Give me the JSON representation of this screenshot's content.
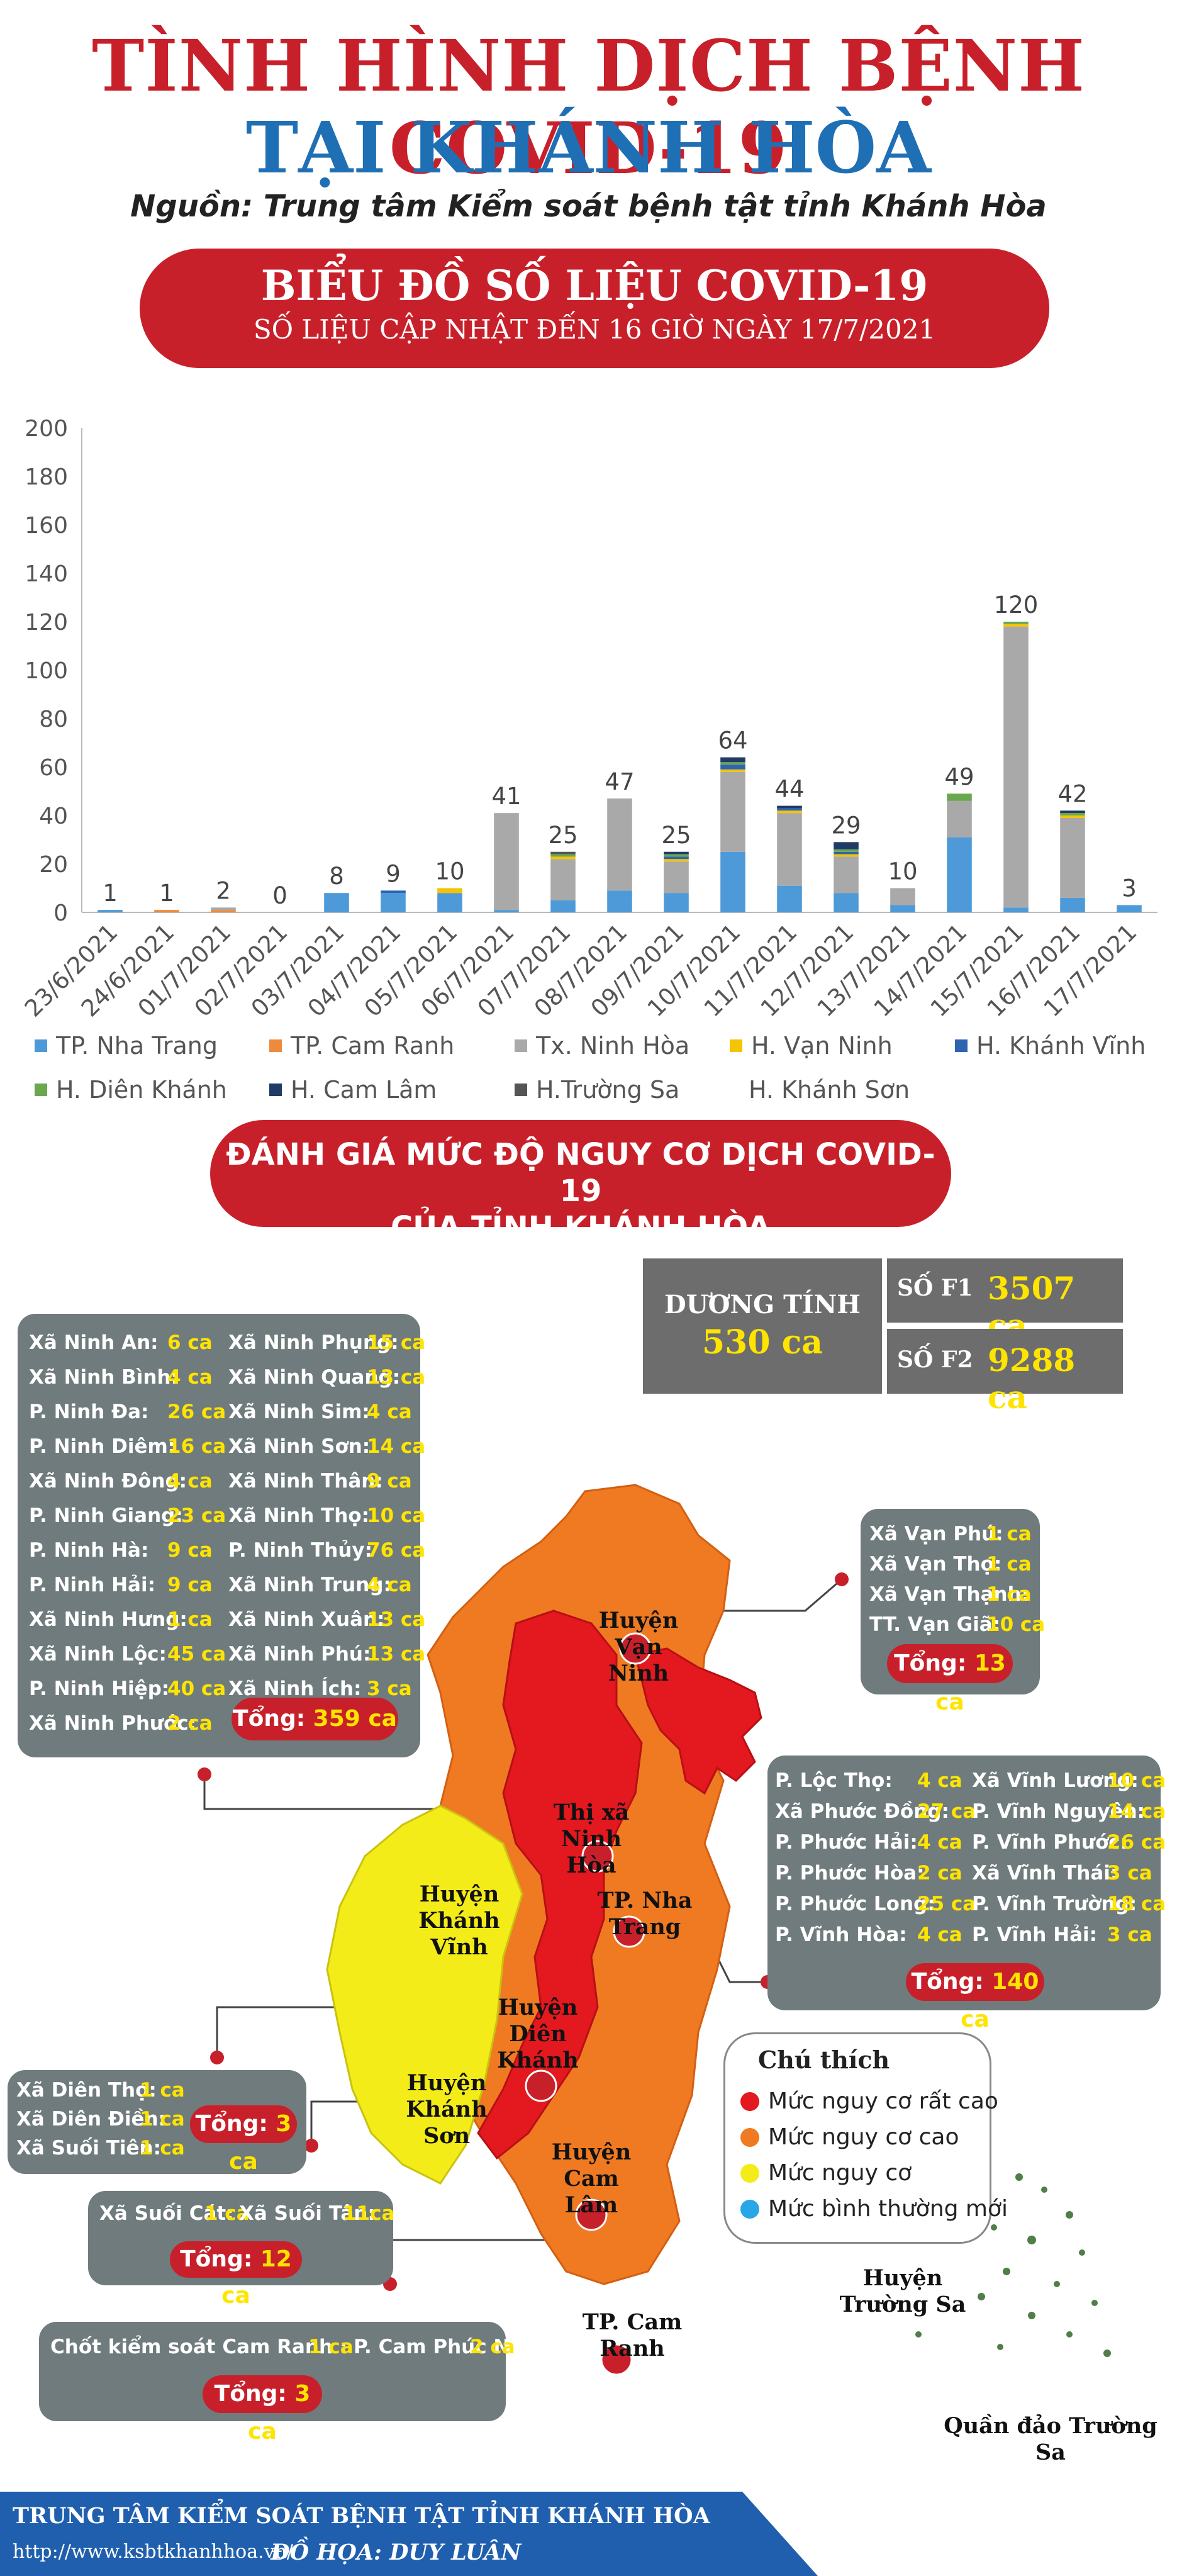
{
  "header": {
    "title_line1": "TÌNH HÌNH DỊCH BỆNH COVID-19",
    "title_line2": "TẠI KHÁNH HÒA",
    "source": "Nguồn: Trung tâm Kiểm soát bệnh tật tỉnh Khánh Hòa"
  },
  "banner1": {
    "title": "BIỂU ĐỒ SỐ LIỆU COVID-19",
    "subtitle": "SỐ LIỆU CẬP NHẬT ĐẾN 16 GIỜ NGÀY 17/7/2021"
  },
  "chart_data": {
    "type": "bar",
    "stacked": true,
    "categories": [
      "23/6/2021",
      "24/6/2021",
      "01/7/2021",
      "02/7/2021",
      "03/7/2021",
      "04/7/2021",
      "05/7/2021",
      "06/7/2021",
      "07/7/2021",
      "08/7/2021",
      "09/7/2021",
      "10/7/2021",
      "11/7/2021",
      "12/7/2021",
      "13/7/2021",
      "14/7/2021",
      "15/7/2021",
      "16/7/2021",
      "17/7/2021"
    ],
    "totals": [
      1,
      1,
      2,
      0,
      8,
      9,
      10,
      41,
      25,
      47,
      25,
      64,
      44,
      29,
      10,
      49,
      120,
      42,
      3
    ],
    "ylim": [
      0,
      200
    ],
    "yticks": [
      0,
      20,
      40,
      60,
      80,
      100,
      120,
      140,
      160,
      180,
      200
    ],
    "grid": false,
    "legend_position": "bottom",
    "series": [
      {
        "name": "TP. Nha Trang",
        "color": "#4e9ad8",
        "values": [
          1,
          0,
          0,
          0,
          8,
          8,
          8,
          1,
          5,
          9,
          8,
          25,
          11,
          8,
          3,
          31,
          2,
          6,
          3
        ]
      },
      {
        "name": "TP. Cam Ranh",
        "color": "#ee8a3c",
        "values": [
          0,
          1,
          1,
          0,
          0,
          0,
          0,
          0,
          0,
          0,
          0,
          0,
          0,
          0,
          0,
          0,
          0,
          0,
          0
        ]
      },
      {
        "name": "Tx. Ninh Hòa",
        "color": "#a9a9a9",
        "values": [
          0,
          0,
          1,
          0,
          0,
          0,
          0,
          40,
          17,
          38,
          13,
          33,
          30,
          15,
          7,
          15,
          116,
          33,
          0
        ]
      },
      {
        "name": "H. Vạn Ninh",
        "color": "#f5c400",
        "values": [
          0,
          0,
          0,
          0,
          0,
          0,
          2,
          0,
          1,
          0,
          1,
          1,
          1,
          1,
          0,
          0,
          1,
          1,
          0
        ]
      },
      {
        "name": "H. Khánh Vĩnh",
        "color": "#2e64b0",
        "values": [
          0,
          0,
          0,
          0,
          0,
          1,
          0,
          0,
          0,
          0,
          1,
          2,
          1,
          1,
          0,
          0,
          0,
          0,
          0
        ]
      },
      {
        "name": "H. Diên Khánh",
        "color": "#6aa84f",
        "values": [
          0,
          0,
          0,
          0,
          0,
          0,
          0,
          0,
          1,
          0,
          1,
          1,
          0,
          1,
          0,
          3,
          1,
          1,
          0
        ]
      },
      {
        "name": "H. Cam Lâm",
        "color": "#1f3b66",
        "values": [
          0,
          0,
          0,
          0,
          0,
          0,
          0,
          0,
          0,
          0,
          1,
          2,
          1,
          3,
          0,
          0,
          0,
          1,
          0
        ]
      },
      {
        "name": "H.Trường Sa",
        "color": "#555555",
        "values": [
          0,
          0,
          0,
          0,
          0,
          0,
          0,
          0,
          1,
          0,
          0,
          0,
          0,
          0,
          0,
          0,
          0,
          0,
          0
        ]
      },
      {
        "name": "H. Khánh Sơn",
        "color": "#ffffff",
        "values": [
          0,
          0,
          0,
          0,
          0,
          0,
          0,
          0,
          0,
          0,
          0,
          0,
          0,
          0,
          0,
          0,
          0,
          0,
          0
        ]
      }
    ]
  },
  "banner2": {
    "line1": "ĐÁNH GIÁ MỨC ĐỘ NGUY CƠ DỊCH COVID-19",
    "line2": "CỦA TỈNH KHÁNH HÒA"
  },
  "stats": {
    "positive_label": "DƯƠNG TÍNH",
    "positive_value": "530 ca",
    "f1_label": "SỐ F1",
    "f1_value": "3507 ca",
    "f2_label": "SỐ F2",
    "f2_value": "9288 ca"
  },
  "ninh_hoa": {
    "left": [
      [
        "Xã Ninh An:",
        "6 ca"
      ],
      [
        "Xã Ninh Bình:",
        "4 ca"
      ],
      [
        "P. Ninh Đa:",
        "26 ca"
      ],
      [
        "P. Ninh Diêm:",
        "16 ca"
      ],
      [
        "Xã Ninh Đông:",
        "4 ca"
      ],
      [
        "P. Ninh Giang:",
        "23 ca"
      ],
      [
        "P. Ninh Hà:",
        "9 ca"
      ],
      [
        "P. Ninh Hải:",
        "9 ca"
      ],
      [
        "Xã Ninh Hưng:",
        "1 ca"
      ],
      [
        "Xã Ninh Lộc:",
        "45 ca"
      ],
      [
        "P. Ninh Hiệp:",
        "40 ca"
      ],
      [
        "Xã Ninh Phước:",
        "2 ca"
      ]
    ],
    "right": [
      [
        "Xã Ninh Phụng:",
        "15 ca"
      ],
      [
        "Xã Ninh Quang:",
        "13 ca"
      ],
      [
        "Xã Ninh Sim:",
        "4 ca"
      ],
      [
        "Xã Ninh Sơn:",
        "14 ca"
      ],
      [
        "Xã Ninh Thân:",
        "9 ca"
      ],
      [
        "Xã Ninh Thọ:",
        "10 ca"
      ],
      [
        "P. Ninh Thủy:",
        "76 ca"
      ],
      [
        "Xã Ninh Trung:",
        "4 ca"
      ],
      [
        "Xã Ninh Xuân:",
        "13 ca"
      ],
      [
        "Xã Ninh Phú:",
        "13 ca"
      ],
      [
        "Xã Ninh Ích:",
        "3 ca"
      ]
    ],
    "total_label": "Tổng:",
    "total_value": "359 ca"
  },
  "van_ninh": {
    "rows": [
      [
        "Xã Vạn Phú:",
        "1 ca"
      ],
      [
        "Xã Vạn Thọ:",
        "1 ca"
      ],
      [
        "Xã Vạn Thạnh:",
        "1 ca"
      ],
      [
        "TT. Vạn Giã:",
        "10 ca"
      ]
    ],
    "total_label": "Tổng:",
    "total_value": "13 ca"
  },
  "nha_trang": {
    "left": [
      [
        "P. Lộc Thọ:",
        "4 ca"
      ],
      [
        "Xã Phước Đồng:",
        "27 ca"
      ],
      [
        "P. Phước Hải:",
        "4 ca"
      ],
      [
        "P. Phước Hòa:",
        "2 ca"
      ],
      [
        "P. Phước Long:",
        "25 ca"
      ],
      [
        "P. Vĩnh Hòa:",
        "4 ca"
      ]
    ],
    "right": [
      [
        "Xã Vĩnh Lương:",
        "10 ca"
      ],
      [
        "P. Vĩnh Nguyên:",
        "14 ca"
      ],
      [
        "P. Vĩnh Phước:",
        "26 ca"
      ],
      [
        "Xã Vĩnh Thái:",
        "3 ca"
      ],
      [
        "P. Vĩnh Trường:",
        "18 ca"
      ],
      [
        "P. Vĩnh Hải:",
        "3 ca"
      ]
    ],
    "total_label": "Tổng:",
    "total_value": "140 ca"
  },
  "dien_khanh": {
    "rows": [
      [
        "Xã Diên Thọ:",
        "1 ca"
      ],
      [
        "Xã Diên Điền:",
        "1 ca"
      ],
      [
        "Xã Suối Tiên:",
        "1 ca"
      ]
    ],
    "total_label": "Tổng:",
    "total_value": "3 ca"
  },
  "cam_lam": {
    "rows": [
      [
        "Xã Suối Cát:",
        "1 ca"
      ],
      [
        "Xã Suối Tân:",
        "11ca"
      ]
    ],
    "total_label": "Tổng:",
    "total_value": "12 ca"
  },
  "cam_ranh": {
    "rows": [
      [
        "Chốt kiểm soát Cam Ranh :",
        "1 ca"
      ],
      [
        "P. Cam Phúc Nam:",
        "2 ca"
      ]
    ],
    "total_label": "Tổng:",
    "total_value": "3 ca"
  },
  "map_labels": {
    "van_ninh": "Huyện\nVạn Ninh",
    "ninh_hoa": "Thị xã\nNinh Hòa",
    "khanh_vinh": "Huyện\nKhánh Vĩnh",
    "nha_trang": "TP. Nha Trang",
    "dien_khanh": "Huyện\nDiên Khánh",
    "khanh_son": "Huyện\nKhánh Sơn",
    "cam_lam": "Huyện\nCam Lâm",
    "cam_ranh": "TP. Cam Ranh",
    "truong_sa": "Huyện\nTrường Sa",
    "quan_dao": "Quần đảo Trường Sa"
  },
  "legend2": {
    "title": "Chú thích",
    "items": [
      {
        "label": "Mức nguy cơ rất cao",
        "color": "#e3191f"
      },
      {
        "label": "Mức nguy cơ cao",
        "color": "#ef7a22"
      },
      {
        "label": "Mức nguy cơ",
        "color": "#f3ec19"
      },
      {
        "label": "Mức bình thường mới",
        "color": "#29a6e6"
      }
    ]
  },
  "footer": {
    "org": "TRUNG TÂM KIỂM SOÁT BỆNH TẬT TỈNH KHÁNH HÒA",
    "url": "http://www.ksbtkhanhhoa.vn/",
    "credit": "ĐỒ HỌA: DUY LUÂN"
  },
  "colors": {
    "red": "#c8202a",
    "blue": "#1f6fb5",
    "panel": "#6f7b7d",
    "value_yellow": "#ffe400"
  }
}
